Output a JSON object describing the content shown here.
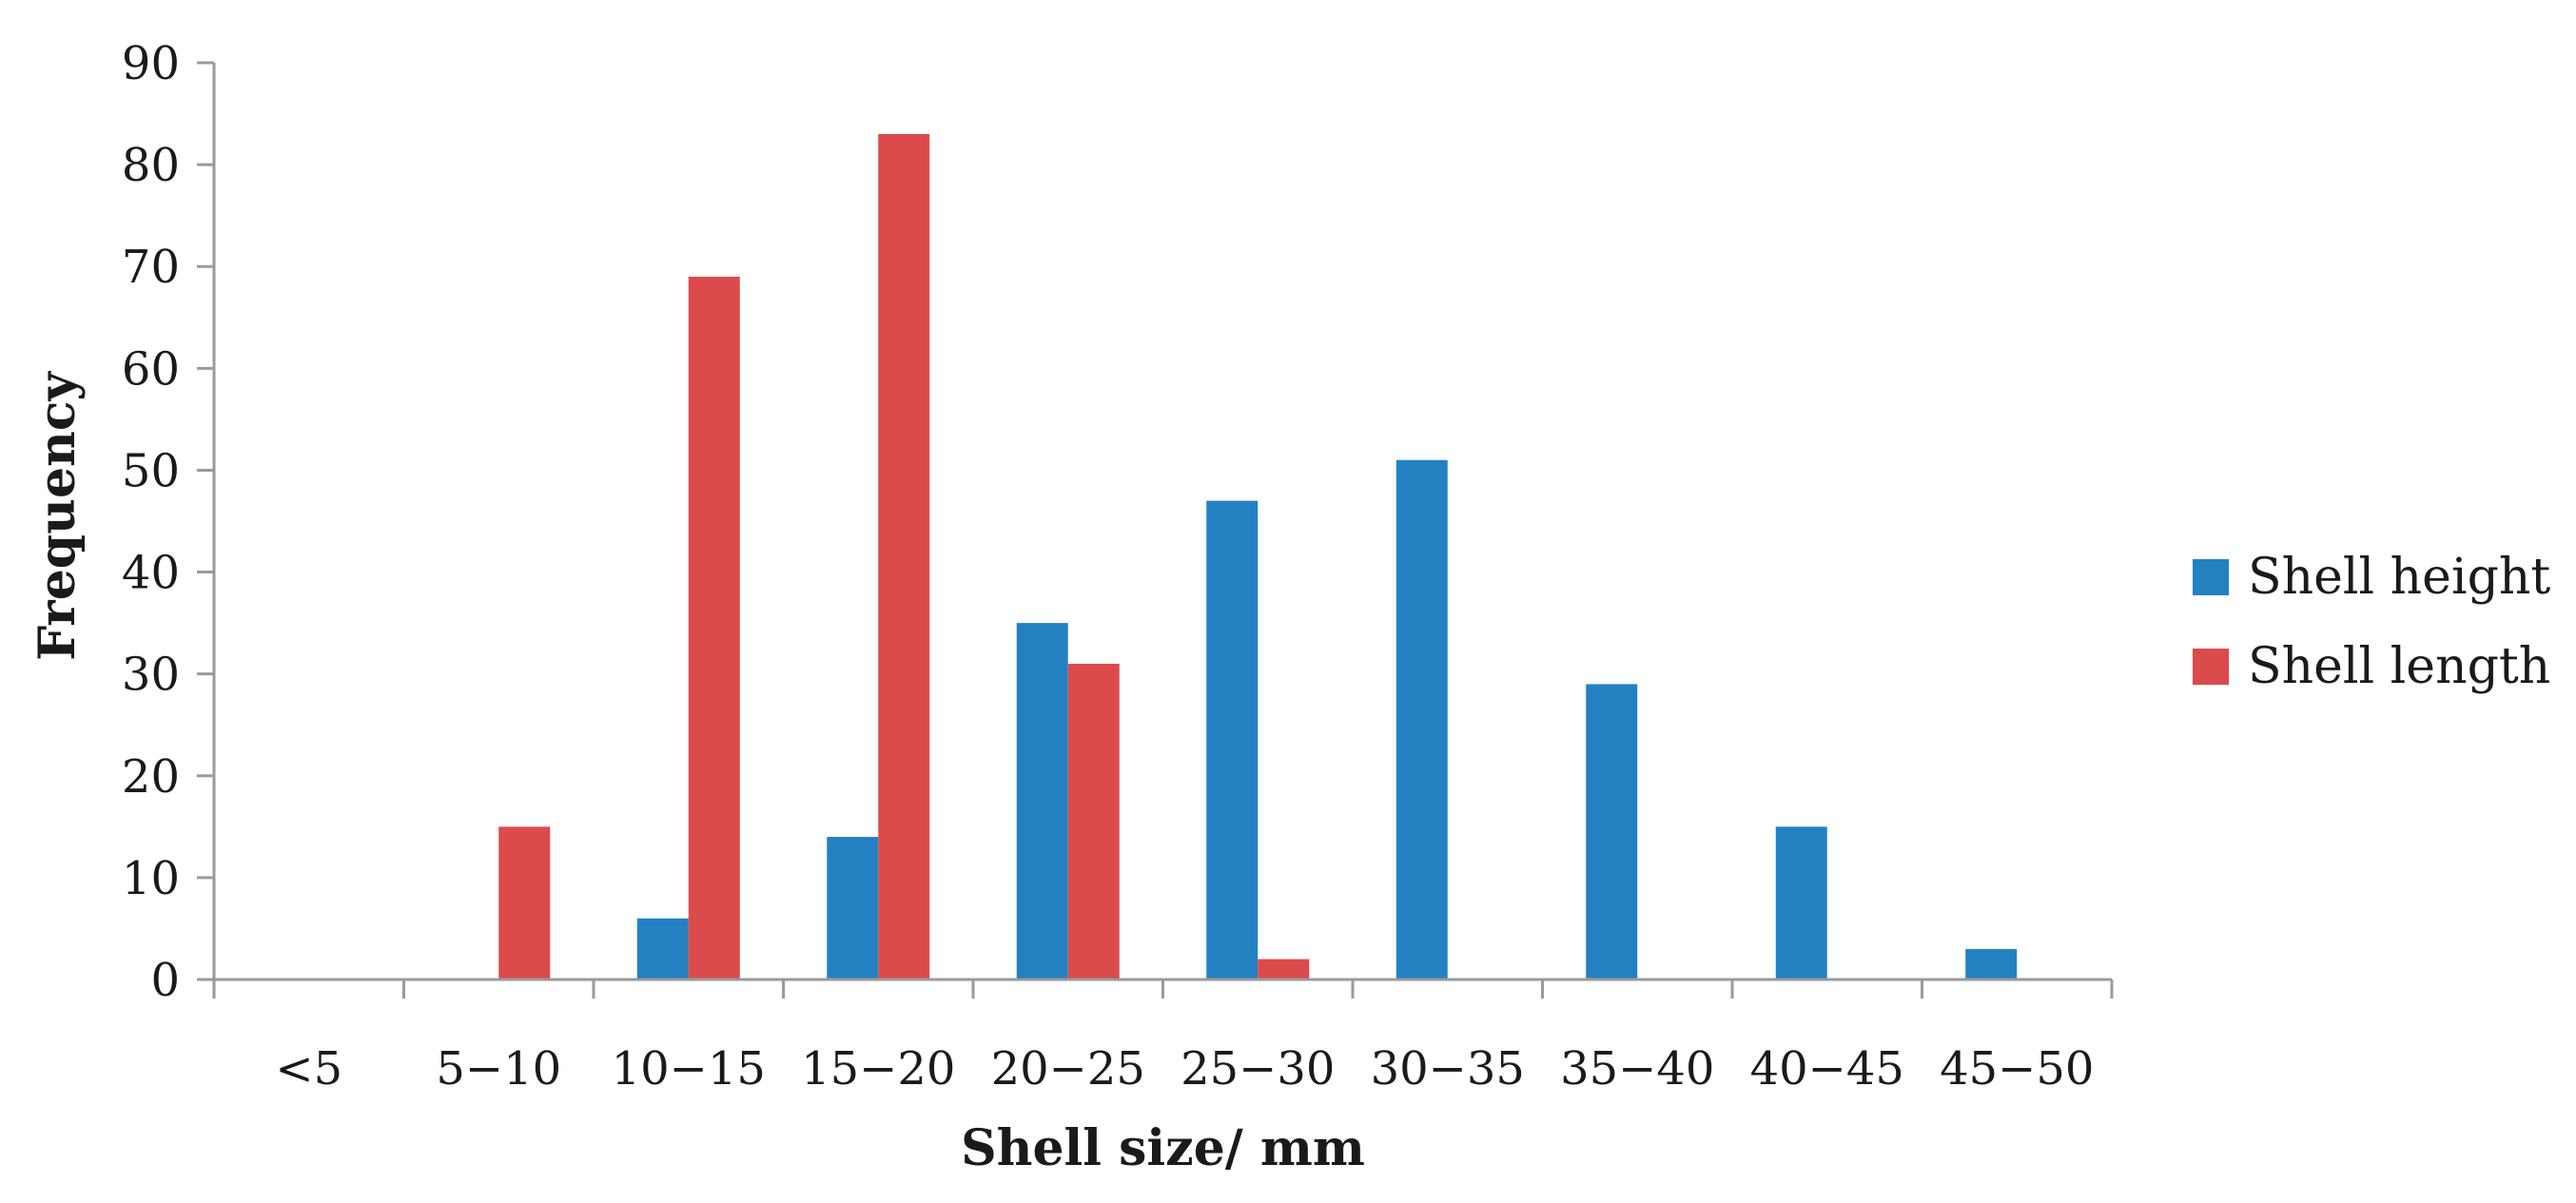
{
  "chart_data": {
    "type": "bar",
    "title": "",
    "xlabel": "Shell size/ mm",
    "ylabel": "Frequency",
    "categories": [
      "<5",
      "5−10",
      "10−15",
      "15−20",
      "20−25",
      "25−30",
      "30−35",
      "35−40",
      "40−45",
      "45−50"
    ],
    "series": [
      {
        "name": "Shell height",
        "color": "#2381c2",
        "values": [
          0,
          0,
          6,
          14,
          35,
          47,
          51,
          29,
          15,
          3
        ]
      },
      {
        "name": "Shell length",
        "color": "#dc4b4b",
        "values": [
          0,
          15,
          69,
          83,
          31,
          2,
          0,
          0,
          0,
          0
        ]
      }
    ],
    "ylim": [
      0,
      90
    ],
    "yticks": [
      0,
      10,
      20,
      30,
      40,
      50,
      60,
      70,
      80,
      90
    ],
    "grid": false,
    "legend": "right"
  }
}
